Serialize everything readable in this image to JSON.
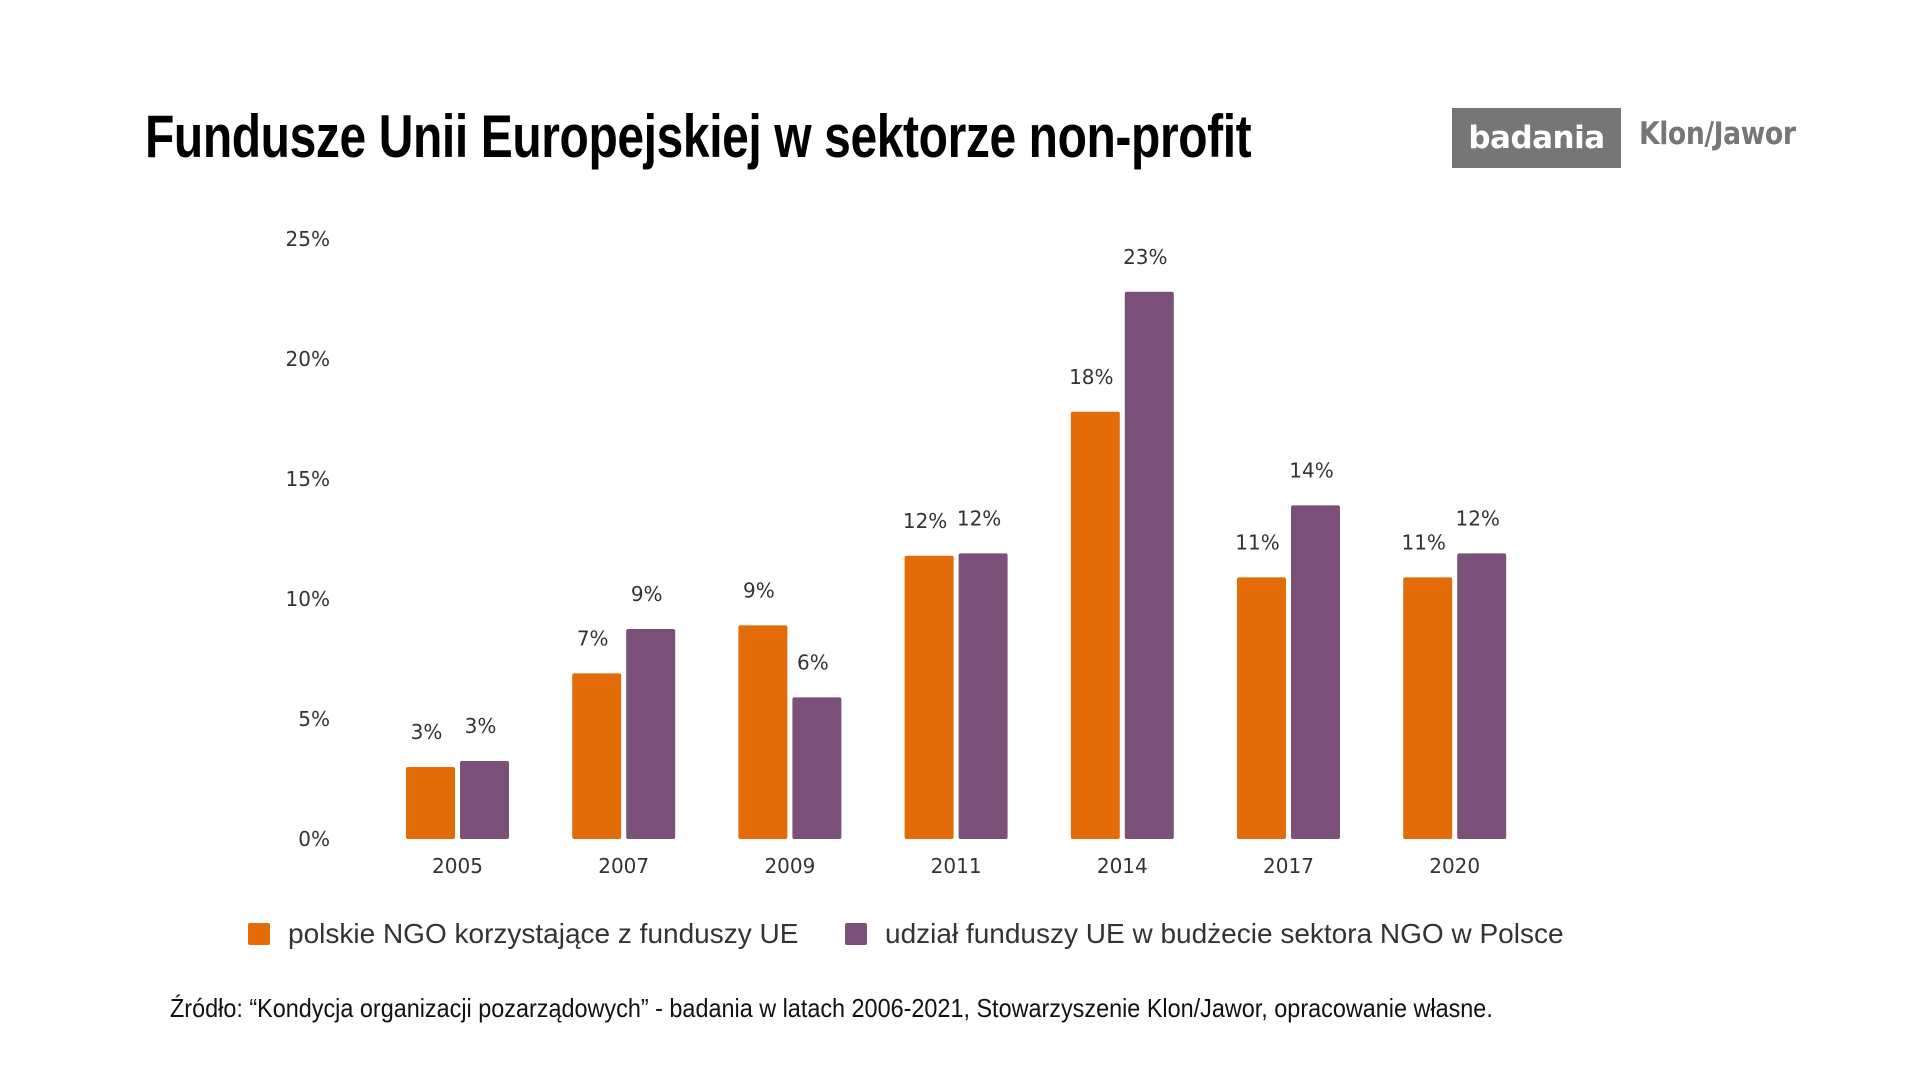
{
  "header": {
    "title": "Fundusze Unii Europejskiej w sektorze non-profit",
    "badge": "badania",
    "brand": "Klon/Jawor",
    "badge_color": "#767676"
  },
  "chart_data": {
    "type": "bar",
    "title": "Fundusze Unii Europejskiej w sektorze non-profit",
    "xlabel": "",
    "ylabel": "",
    "categories": [
      "2005",
      "2007",
      "2009",
      "2011",
      "2014",
      "2017",
      "2020"
    ],
    "series": [
      {
        "name": "polskie NGO korzystające z funduszy UE",
        "color": "#E36C09",
        "values": [
          3.0,
          6.9,
          8.9,
          11.8,
          17.8,
          10.9,
          10.9
        ],
        "labels": [
          "3%",
          "7%",
          "9%",
          "12%",
          "18%",
          "11%",
          "11%"
        ]
      },
      {
        "name": "udział funduszy UE w budżecie sektora NGO w Polsce",
        "color": "#7B5079",
        "values": [
          3.25,
          8.75,
          5.9,
          11.9,
          22.8,
          13.9,
          11.9
        ],
        "labels": [
          "3%",
          "9%",
          "6%",
          "12%",
          "23%",
          "14%",
          "12%"
        ]
      }
    ],
    "ylim": [
      0,
      25
    ],
    "yticks": [
      0,
      5,
      10,
      15,
      20,
      25
    ],
    "ytick_labels": [
      "0%",
      "5%",
      "10%",
      "15%",
      "20%",
      "25%"
    ],
    "grid": false,
    "legend_position": "bottom"
  },
  "footer": {
    "source": "Źródło:  “Kondycja organizacji pozarządowych” - badania w latach 2006-2021, Stowarzyszenie Klon/Jawor, opracowanie własne."
  }
}
